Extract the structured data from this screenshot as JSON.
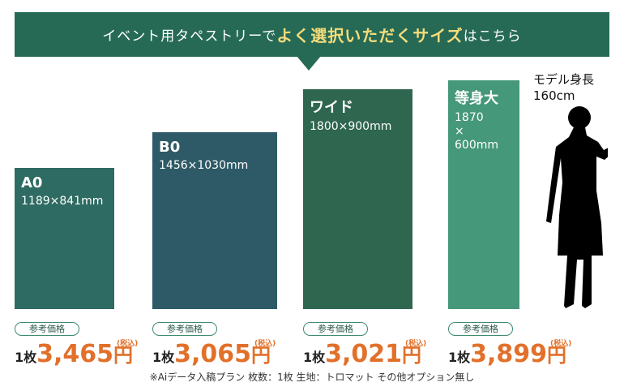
{
  "banner": {
    "lead": "イベント用タペストリーで",
    "highlight": "よく選択いただくサイズ",
    "tail": "はこちら"
  },
  "sizes": [
    {
      "name": "A0",
      "dims": [
        "1189×841mm"
      ],
      "badge": "参考価格",
      "unit": "1枚",
      "price": "3,465",
      "currency": "円",
      "tax": "(税込)"
    },
    {
      "name": "B0",
      "dims": [
        "1456×1030mm"
      ],
      "badge": "参考価格",
      "unit": "1枚",
      "price": "3,065",
      "currency": "円",
      "tax": "(税込)"
    },
    {
      "name": "ワイド",
      "dims": [
        "1800×900mm"
      ],
      "badge": "参考価格",
      "unit": "1枚",
      "price": "3,021",
      "currency": "円",
      "tax": "(税込)"
    },
    {
      "name": "等身大",
      "dims": [
        "1870",
        "×",
        "600mm"
      ],
      "badge": "参考価格",
      "unit": "1枚",
      "price": "3,899",
      "currency": "円",
      "tax": "(税込)"
    }
  ],
  "model": {
    "label": "モデル身長",
    "height": "160cm"
  },
  "footnote": "※Aiデータ入稿プラン 枚数：1枚 生地：トロマット その他オプション無し"
}
